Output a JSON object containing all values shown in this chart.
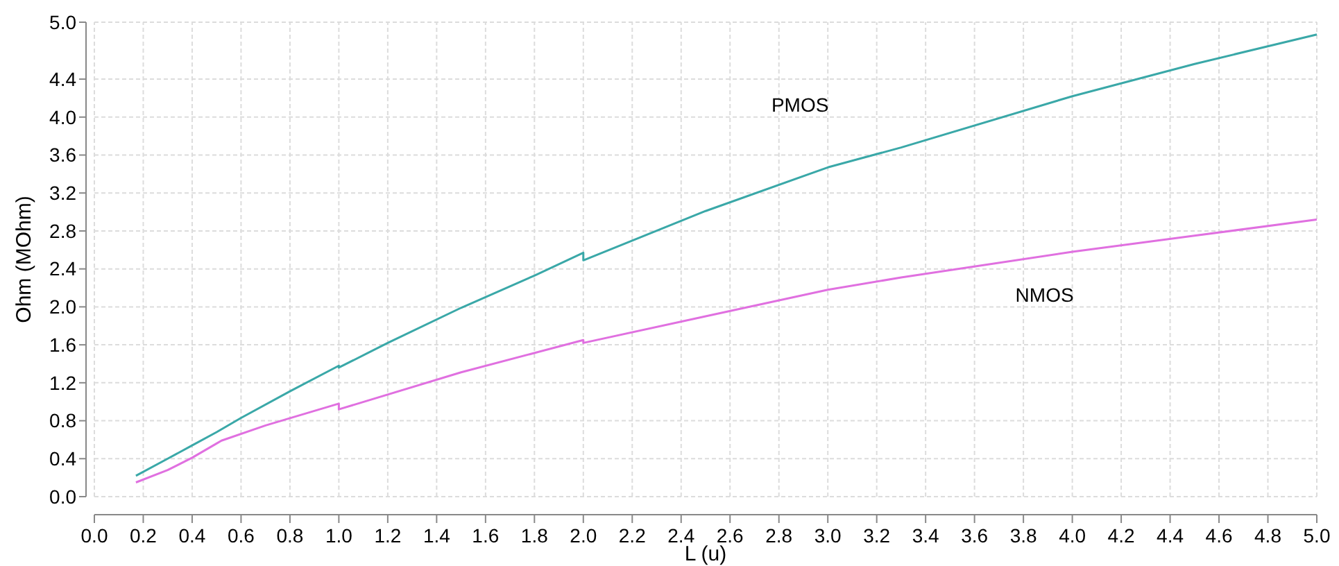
{
  "chart_data": {
    "type": "line",
    "xlabel": "L (u)",
    "ylabel": "Ohm (MOhm)",
    "xlim": [
      0,
      5
    ],
    "xticks": [
      {
        "value": 0,
        "label": "0.0"
      },
      0.2,
      0.4,
      0.6,
      0.8,
      {
        "value": 1,
        "label": "1.0"
      },
      1.2,
      1.4,
      1.6,
      1.8,
      {
        "value": 2,
        "label": "2.0"
      },
      2.2,
      2.4,
      2.6,
      2.8,
      {
        "value": 3,
        "label": "3.0"
      },
      3.2,
      3.4,
      3.6,
      3.8,
      {
        "value": 4,
        "label": "4.0"
      },
      4.2,
      4.4,
      4.6,
      4.8,
      {
        "value": 5,
        "label": "5.0"
      }
    ],
    "ylim": [
      0,
      5
    ],
    "yticks": [
      {
        "value": 0,
        "label": "0.0"
      },
      0.4,
      0.8,
      1.2,
      1.6,
      {
        "value": 2,
        "label": "2.0"
      },
      2.4,
      2.8,
      3.2,
      3.6,
      {
        "value": 4,
        "label": "4.0"
      },
      4.4,
      {
        "value": 5,
        "label": "5.0"
      }
    ],
    "grid": true,
    "marker": "none",
    "line_style": "solid",
    "series": [
      {
        "name": "PMOS",
        "color": "#3aa8a8",
        "x": [
          0.17,
          0.3,
          0.4,
          0.5,
          0.6,
          0.8,
          1.0,
          1.0,
          1.2,
          1.5,
          1.8,
          2.0,
          2.0,
          2.5,
          3.0,
          3.3,
          4.0,
          4.5,
          5.0
        ],
        "values": [
          0.22,
          0.4,
          0.54,
          0.68,
          0.83,
          1.11,
          1.38,
          1.36,
          1.62,
          1.99,
          2.33,
          2.57,
          2.49,
          3.01,
          3.47,
          3.68,
          4.22,
          4.56,
          4.87
        ]
      },
      {
        "name": "NMOS",
        "color": "#e070e0",
        "x": [
          0.17,
          0.3,
          0.4,
          0.5,
          0.52,
          0.7,
          1.0,
          1.0,
          1.5,
          2.0,
          2.0,
          2.5,
          3.0,
          3.3,
          4.0,
          4.5,
          5.0
        ],
        "values": [
          0.15,
          0.28,
          0.41,
          0.56,
          0.59,
          0.75,
          0.98,
          0.92,
          1.31,
          1.65,
          1.62,
          1.9,
          2.18,
          2.31,
          2.58,
          2.75,
          2.92
        ]
      }
    ]
  }
}
